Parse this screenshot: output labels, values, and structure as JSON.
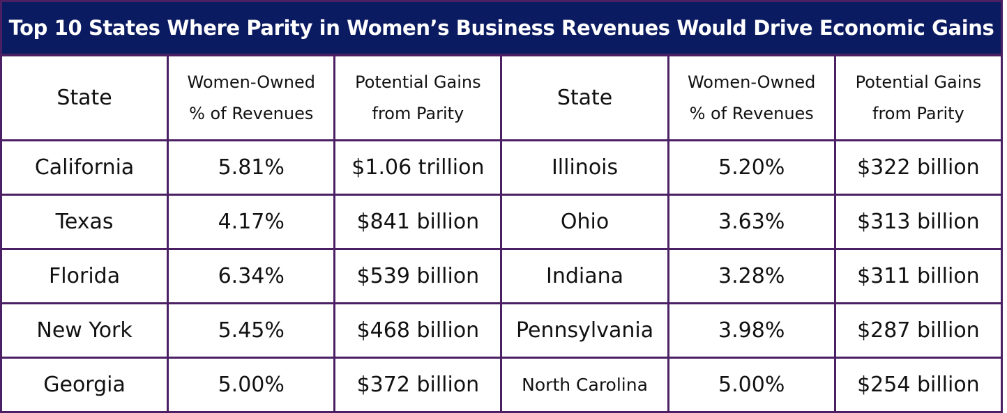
{
  "title": "Top 10 States Where Parity in Women’s Business Revenues Would Drive Economic Gains",
  "colors": {
    "title_background": "#0b1b61",
    "title_text": "#ffffff",
    "grid_lines": "#4a1f63",
    "cell_text": "#111111"
  },
  "chart_data": {
    "type": "table",
    "title": "Top 10 States Where Parity in Women’s Business Revenues Would Drive Economic Gains",
    "columns": [
      {
        "lines": [
          "State"
        ]
      },
      {
        "lines": [
          "Women-Owned",
          "% of Revenues"
        ]
      },
      {
        "lines": [
          "Potential Gains",
          "from Parity"
        ]
      },
      {
        "lines": [
          "State"
        ]
      },
      {
        "lines": [
          "Women-Owned",
          "% of Revenues"
        ]
      },
      {
        "lines": [
          "Potential Gains",
          "from Parity"
        ]
      }
    ],
    "rows": [
      [
        "California",
        "5.81%",
        "$1.06 trillion",
        "Illinois",
        "5.20%",
        "$322 billion"
      ],
      [
        "Texas",
        "4.17%",
        "$841 billion",
        "Ohio",
        "3.63%",
        "$313 billion"
      ],
      [
        "Florida",
        "6.34%",
        "$539 billion",
        "Indiana",
        "3.28%",
        "$311 billion"
      ],
      [
        "New York",
        "5.45%",
        "$468 billion",
        "Pennsylvania",
        "3.98%",
        "$287 billion"
      ],
      [
        "Georgia",
        "5.00%",
        "$372 billion",
        "North Carolina",
        "5.00%",
        "$254 billion"
      ]
    ]
  }
}
